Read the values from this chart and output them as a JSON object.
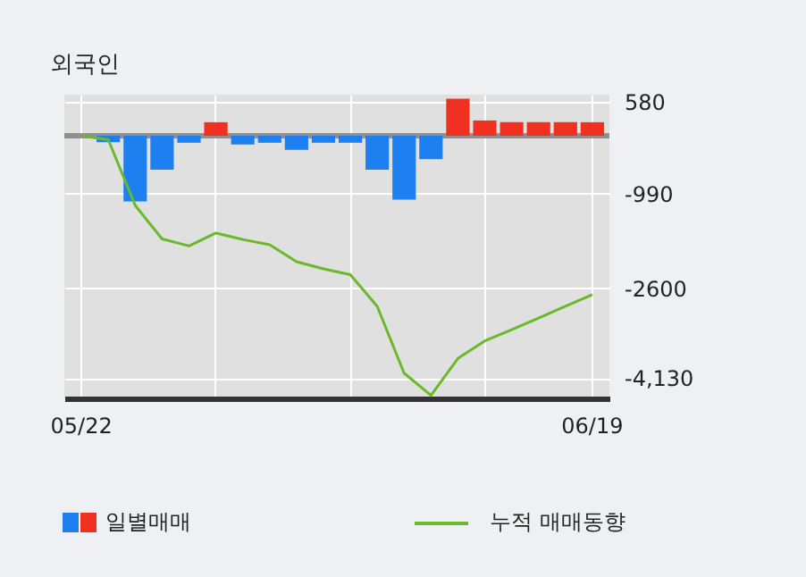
{
  "chart_data": {
    "type": "bar",
    "title": "외국인",
    "categories": [
      "05/22",
      null,
      null,
      null,
      null,
      null,
      null,
      null,
      null,
      null,
      null,
      null,
      null,
      null,
      null,
      null,
      null,
      null,
      null,
      "06/19"
    ],
    "series": [
      {
        "name": "일별매매",
        "values": [
          0,
          -110,
          -1120,
          -580,
          -120,
          230,
          -150,
          -120,
          -240,
          -120,
          -120,
          -580,
          -1090,
          -400,
          630,
          260,
          230,
          230,
          230,
          230
        ],
        "colors": [
          "#1e7ff0",
          "#1e7ff0",
          "#1e7ff0",
          "#1e7ff0",
          "#1e7ff0",
          "#f03020",
          "#1e7ff0",
          "#1e7ff0",
          "#1e7ff0",
          "#1e7ff0",
          "#1e7ff0",
          "#1e7ff0",
          "#1e7ff0",
          "#1e7ff0",
          "#f03020",
          "#f03020",
          "#f03020",
          "#f03020",
          "#f03020",
          "#f03020"
        ]
      },
      {
        "name": "누적 매매동향",
        "type": "line",
        "color": "#6ab82c",
        "values": [
          0,
          -70,
          -1190,
          -1760,
          -1880,
          -1660,
          -1770,
          -1860,
          -2150,
          -2270,
          -2370,
          -2910,
          -4050,
          -4430,
          -3800,
          -3500,
          -3310,
          -3110,
          -2910,
          -2710
        ]
      }
    ],
    "ylim": [
      -4480,
      700
    ],
    "yticks": [
      580,
      -990,
      -2600,
      {
        "value": -4130,
        "label": "-4,130"
      }
    ],
    "ref_lines": [
      {
        "axis": "y",
        "value": 0,
        "color": "#909090"
      }
    ],
    "grid": true,
    "legend": "bottom"
  }
}
